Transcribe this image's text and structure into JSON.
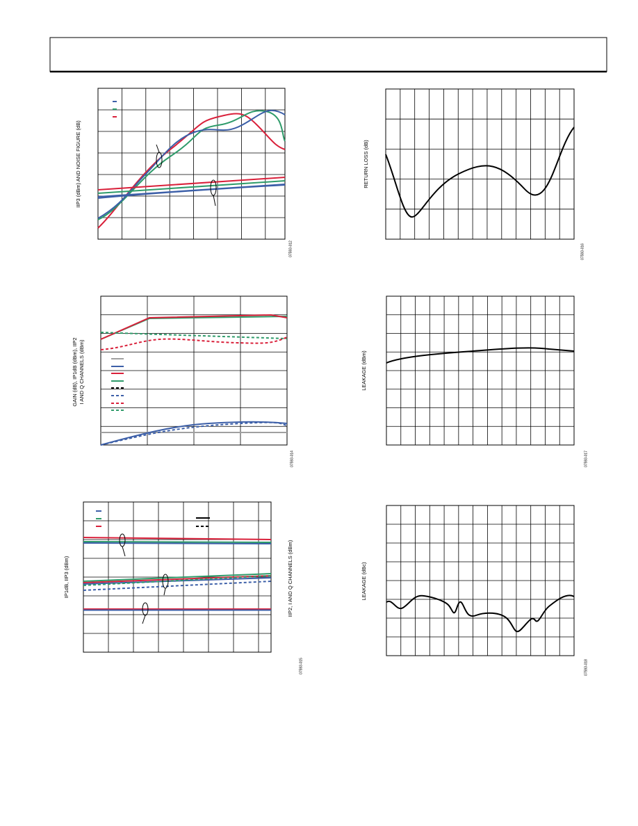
{
  "figures": [
    {
      "y_label": "IIP3 (dBm) AND NOISE FIGURE (dB)",
      "figure_id": "07593-012"
    },
    {
      "y_label": "RETURN LOSS (dB)",
      "figure_id": "07593-016"
    },
    {
      "y_label": [
        "GAIN (dB), IP1dB (dBm), IIP2",
        "I AND Q CHANNELS (dBm)"
      ],
      "figure_id": "07593-014"
    },
    {
      "y_label": "LEAKAGE (dBm)",
      "figure_id": "07593-017"
    },
    {
      "y_label": "IP1dB, IIP3 (dBm)",
      "y2_label": "IIP2, I AND Q CHANNELS (dBm)",
      "figure_id": "07593-015"
    },
    {
      "y_label": "LEAKAGE (dBc)",
      "figure_id": "07593-018"
    }
  ]
}
